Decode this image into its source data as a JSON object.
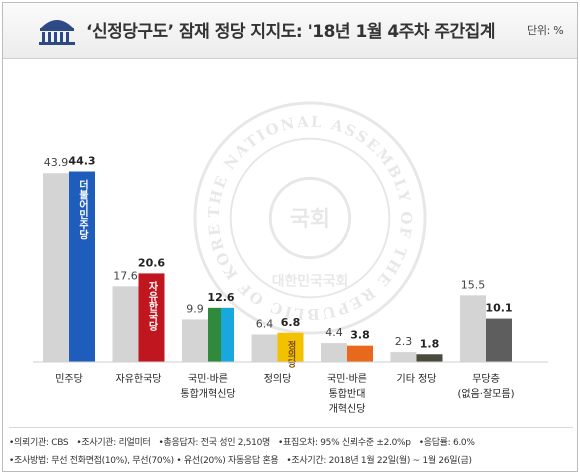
{
  "header": {
    "title": "‘신정당구도’ 잠재 정당 지지도: '18년 1월 4주차 주간집계",
    "unit": "단위: %"
  },
  "chart_data": {
    "type": "bar",
    "categories": [
      [
        "민주당"
      ],
      [
        "자유한국당"
      ],
      [
        "국민·바른",
        "통합개혁신당"
      ],
      [
        "정의당"
      ],
      [
        "국민·바른",
        "통합반대",
        "개혁신당"
      ],
      [
        "기타 정당"
      ],
      [
        "무당층",
        "(없음·잘모름)"
      ]
    ],
    "series": [
      {
        "values": [
          43.9,
          17.6,
          9.9,
          6.4,
          4.4,
          2.3,
          15.5
        ],
        "color": "#d4d4d4"
      },
      {
        "values": [
          44.3,
          20.6,
          12.6,
          6.8,
          3.8,
          1.8,
          10.1
        ]
      }
    ],
    "bar_colors": [
      "#1f5dbd",
      "#c01620",
      "#2f8a3c",
      "#f2c200",
      "#e8691c",
      "#4a4a3e",
      "#5e5e5e"
    ],
    "bar_fill_split": {
      "2": [
        "#2f8a3c",
        "#19a7e0"
      ]
    },
    "bar_logos": [
      "더불어민주당",
      "자유한국당",
      "",
      "정의당",
      "",
      "",
      ""
    ],
    "ylim": [
      0,
      50
    ]
  },
  "footer": {
    "line1": [
      "•의뢰기관: CBS",
      "•조사기관: 리얼미터",
      "•총응답자: 전국 성인 2,510명",
      "•표집오차: 95% 신뢰수준 ±2.0%p",
      "•응답률: 6.0%"
    ],
    "line2": [
      "•조사방법: 무선 전화면접(10%), 무선(70%) • 유선(20%) 자동응답 혼용",
      "•조사기간: 2018년 1월 22일(월) ~ 1월 26일(금)"
    ]
  },
  "watermark": {
    "ring_text": "THE NATIONAL ASSEMBLY OF THE REPUBLIC OF KOREA",
    "seal_text": "국회",
    "bottom_text": "대한민국국회"
  }
}
